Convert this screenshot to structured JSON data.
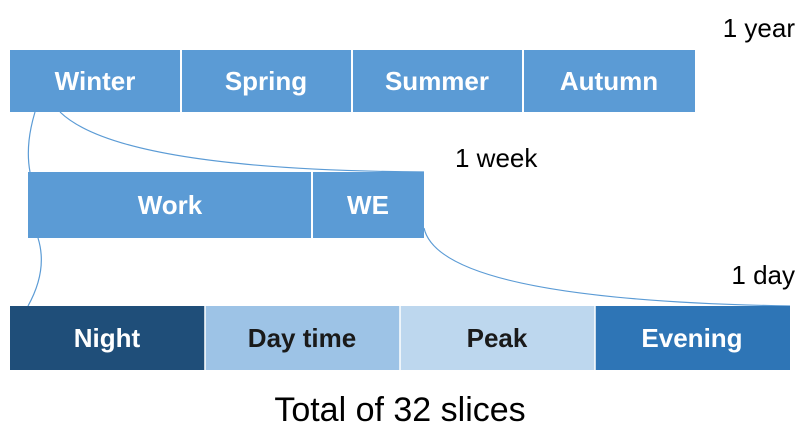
{
  "levels": [
    {
      "label": "1 year",
      "segments": [
        "Winter",
        "Spring",
        "Summer",
        "Autumn"
      ]
    },
    {
      "label": "1 week",
      "segments": [
        "Work",
        "WE"
      ]
    },
    {
      "label": "1 day",
      "segments": [
        "Night",
        "Day time",
        "Peak",
        "Evening"
      ]
    }
  ],
  "footer": "Total of 32 slices"
}
